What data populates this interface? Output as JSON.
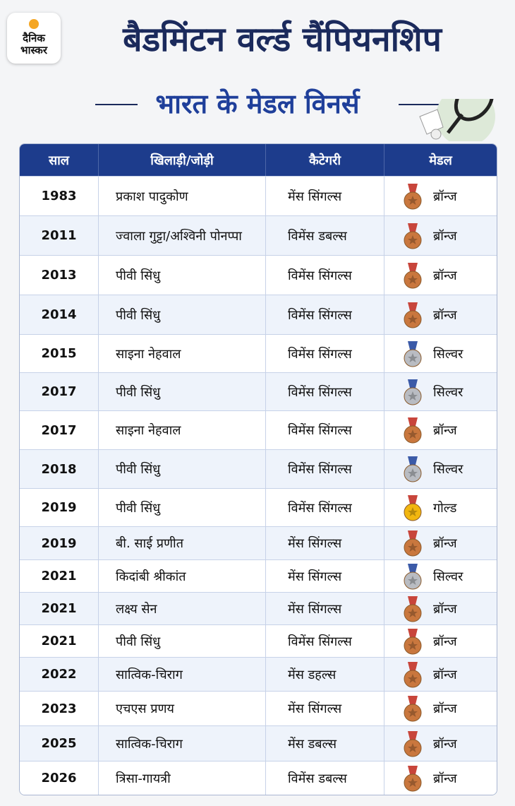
{
  "logo": {
    "line1": "दैनिक",
    "line2": "भास्कर"
  },
  "header": {
    "title": "बैडमिंटन वर्ल्ड चैंपियनशिप",
    "subtitle": "भारत के मेडल विनर्स"
  },
  "table": {
    "columns": [
      "साल",
      "खिलाड़ी/जोड़ी",
      "कैटेगरी",
      "मेडल"
    ],
    "rows": [
      [
        "1983",
        "प्रकाश पादुकोण",
        "मेंस सिंगल्स",
        "ब्रॉन्ज"
      ],
      [
        "2011",
        "ज्वाला गुट्टा/अश्विनी पोनप्पा",
        "विमेंस डबल्स",
        "ब्रॉन्ज"
      ],
      [
        "2013",
        "पीवी सिंधु",
        "विमेंस सिंगल्स",
        "ब्रॉन्ज"
      ],
      [
        "2014",
        "पीवी सिंधु",
        "विमेंस सिंगल्स",
        "ब्रॉन्ज"
      ],
      [
        "2015",
        "साइना नेहवाल",
        "विमेंस सिंगल्स",
        "सिल्वर"
      ],
      [
        "2017",
        "पीवी सिंधु",
        "विमेंस सिंगल्स",
        "सिल्वर"
      ],
      [
        "2017",
        "साइना नेहवाल",
        "विमेंस सिंगल्स",
        "ब्रॉन्ज"
      ],
      [
        "2018",
        "पीवी सिंधु",
        "विमेंस सिंगल्स",
        "सिल्वर"
      ],
      [
        "2019",
        "पीवी सिंधु",
        "विमेंस सिंगल्स",
        "गोल्ड"
      ],
      [
        "2019",
        "बी. साई प्रणीत",
        "मेंस सिंगल्स",
        "ब्रॉन्ज"
      ],
      [
        "2021",
        "किदांबी श्रीकांत",
        "मेंस सिंगल्स",
        "सिल्वर"
      ],
      [
        "2021",
        "लक्ष्य सेन",
        "मेंस सिंगल्स",
        "ब्रॉन्ज"
      ],
      [
        "2021",
        "पीवी सिंधु",
        "विमेंस सिंगल्स",
        "ब्रॉन्ज"
      ],
      [
        "2022",
        "सात्विक-चिराग",
        "मेंस डहल्स",
        "ब्रॉन्ज"
      ],
      [
        "2023",
        "एचएस प्रणय",
        "मेंस सिंगल्स",
        "ब्रॉन्ज"
      ],
      [
        "2025",
        "सात्विक-चिराग",
        "मेंस डबल्स",
        "ब्रॉन्ज"
      ],
      [
        "2026",
        "त्रिसा-गायत्री",
        "विमेंस डबल्स",
        "ब्रॉन्ज"
      ]
    ],
    "medal_colors": {
      "ब्रॉन्ज": "#c9773e",
      "सिल्वर": "#b9bcc2",
      "गोल्ड": "#f2b60f"
    }
  }
}
